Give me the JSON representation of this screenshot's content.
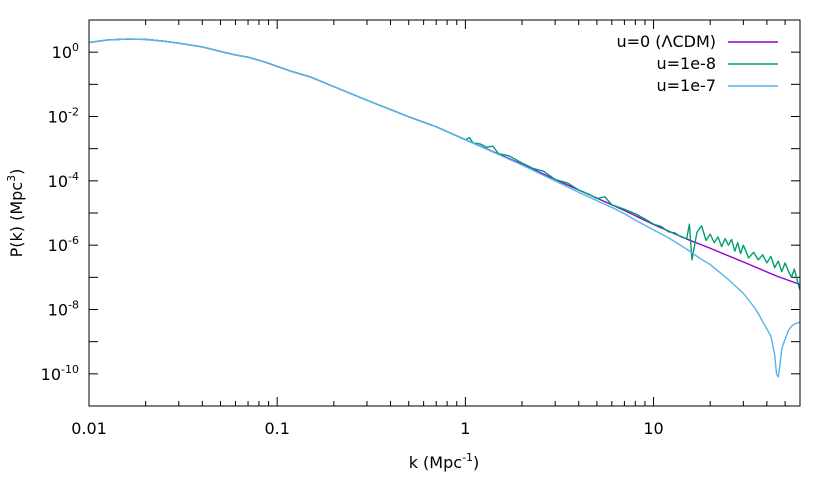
{
  "chart_data": {
    "type": "line",
    "xlabel": "k (Mpc",
    "xlabel_sup": "-1",
    "xlabel_end": ")",
    "ylabel": "P(k) (Mpc",
    "ylabel_sup": "3",
    "ylabel_end": ")",
    "x_scale": "log",
    "y_scale": "log",
    "xlim": [
      0.01,
      60
    ],
    "ylim": [
      1e-11,
      10
    ],
    "grid": false,
    "legend_position": "top-right",
    "x_ticks": [
      {
        "value": 0.01,
        "label": "0.01"
      },
      {
        "value": 0.1,
        "label": "0.1"
      },
      {
        "value": 1,
        "label": "1"
      },
      {
        "value": 10,
        "label": "10"
      }
    ],
    "y_ticks": [
      {
        "value": 1,
        "base": "10",
        "exp": "0"
      },
      {
        "value": 0.01,
        "base": "10",
        "exp": "-2"
      },
      {
        "value": 0.0001,
        "base": "10",
        "exp": "-4"
      },
      {
        "value": 1e-06,
        "base": "10",
        "exp": "-6"
      },
      {
        "value": 1e-08,
        "base": "10",
        "exp": "-8"
      },
      {
        "value": 1e-10,
        "base": "10",
        "exp": "-10"
      }
    ],
    "series": [
      {
        "name": "u=0 (ΛCDM)",
        "color": "#9400d3",
        "x": [
          0.01,
          0.0126,
          0.016,
          0.02,
          0.025,
          0.03,
          0.04,
          0.05,
          0.06,
          0.07,
          0.08,
          0.09,
          0.1,
          0.12,
          0.15,
          0.2,
          0.3,
          0.5,
          0.7,
          1,
          1.5,
          2,
          3,
          5,
          7,
          10,
          15,
          20,
          30,
          45,
          60
        ],
        "y": [
          2.0,
          2.4,
          2.55,
          2.5,
          2.2,
          1.9,
          1.45,
          1.05,
          0.82,
          0.7,
          0.56,
          0.45,
          0.36,
          0.25,
          0.17,
          0.085,
          0.032,
          0.0098,
          0.0048,
          0.0019,
          0.00068,
          0.00033,
          0.00011,
          2.9e-05,
          1.2e-05,
          4.4e-06,
          1.55e-06,
          8e-07,
          3e-07,
          1.1e-07,
          6e-08
        ]
      },
      {
        "name": "u=1e-8",
        "color": "#009e73",
        "x": [
          0.01,
          0.0126,
          0.016,
          0.02,
          0.025,
          0.03,
          0.04,
          0.05,
          0.06,
          0.07,
          0.08,
          0.09,
          0.1,
          0.12,
          0.15,
          0.2,
          0.3,
          0.5,
          0.7,
          1,
          1.05,
          1.1,
          1.2,
          1.3,
          1.4,
          1.5,
          1.7,
          2,
          2.3,
          2.6,
          3,
          3.5,
          4,
          4.5,
          5,
          5.5,
          6,
          7,
          8,
          9,
          10,
          11,
          12,
          13,
          14,
          15,
          15.5,
          16,
          17,
          18,
          19,
          20,
          21,
          22,
          23,
          24,
          25,
          26,
          27,
          28,
          29,
          30,
          32,
          34,
          36,
          38,
          40,
          42,
          44,
          46,
          48,
          50,
          52,
          54,
          56,
          58,
          60
        ],
        "y": [
          2.0,
          2.4,
          2.55,
          2.5,
          2.2,
          1.9,
          1.45,
          1.05,
          0.82,
          0.7,
          0.56,
          0.45,
          0.36,
          0.25,
          0.17,
          0.085,
          0.032,
          0.0098,
          0.0048,
          0.0019,
          0.0022,
          0.0015,
          0.0014,
          0.0011,
          0.0012,
          0.0007,
          0.0006,
          0.00036,
          0.00024,
          0.0002,
          0.00011,
          8.5e-05,
          5.2e-05,
          3.9e-05,
          2.8e-05,
          3.2e-05,
          1.8e-05,
          1.3e-05,
          9.5e-06,
          6.5e-06,
          4.5e-06,
          3.8e-06,
          2.6e-06,
          2.4e-06,
          1.8e-06,
          1.6e-06,
          4.5e-06,
          3.5e-07,
          2.5e-06,
          4e-06,
          1.4e-06,
          2.2e-06,
          1.2e-06,
          1.8e-06,
          9e-07,
          1.6e-06,
          1e-06,
          1.5e-06,
          6.5e-07,
          1.2e-06,
          5.5e-07,
          1e-06,
          4e-07,
          6e-07,
          3.5e-07,
          5e-07,
          2.8e-07,
          4.5e-07,
          2e-07,
          3.2e-07,
          1.5e-07,
          2.8e-07,
          1.6e-07,
          1e-07,
          1.8e-07,
          8e-08,
          4e-08
        ]
      },
      {
        "name": "u=1e-7",
        "color": "#56b4e9",
        "x": [
          0.01,
          0.0126,
          0.016,
          0.02,
          0.025,
          0.03,
          0.04,
          0.05,
          0.06,
          0.07,
          0.08,
          0.09,
          0.1,
          0.12,
          0.15,
          0.2,
          0.3,
          0.5,
          0.7,
          1,
          1.5,
          2,
          3,
          4,
          5,
          6,
          7,
          8,
          10,
          12,
          15,
          18,
          20,
          25,
          30,
          35,
          40,
          42,
          44,
          45,
          46,
          47,
          48,
          50,
          52,
          54,
          56,
          58,
          60
        ],
        "y": [
          2.0,
          2.4,
          2.55,
          2.5,
          2.2,
          1.9,
          1.45,
          1.05,
          0.82,
          0.7,
          0.56,
          0.45,
          0.36,
          0.25,
          0.17,
          0.085,
          0.032,
          0.0098,
          0.0048,
          0.0019,
          0.00066,
          0.00031,
          0.0001,
          4.4e-05,
          2.4e-05,
          1.5e-05,
          9.5e-06,
          6e-06,
          3e-06,
          1.7e-06,
          7.5e-07,
          3.6e-07,
          2.5e-07,
          8.5e-08,
          3.2e-08,
          1e-08,
          2.5e-09,
          1.5e-09,
          4e-10,
          1e-10,
          8e-11,
          2e-10,
          6e-10,
          1.2e-09,
          2.2e-09,
          3e-09,
          3.5e-09,
          3.8e-09,
          4e-09
        ]
      }
    ]
  }
}
